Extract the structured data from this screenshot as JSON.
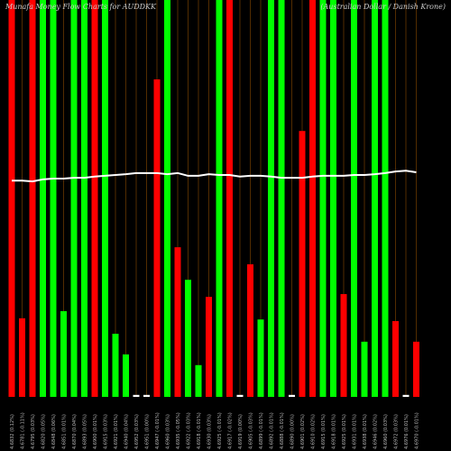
{
  "chart_data": {
    "type": "bar",
    "title": "Munafa Money Flow Charts for AUDDKK",
    "subtitle": "(Australian Dollar / Danish Krone)",
    "categories": [
      "4.6832 (0.12%)",
      "4.6781 (-0.11%)",
      "4.6795 (0.03%)",
      "4.6820 (0.05%)",
      "4.6848 (0.06%)",
      "4.6851 (0.01%)",
      "4.6870 (0.04%)",
      "4.6893 (0.05%)",
      "4.6900 (0.01%)",
      "4.6915 (0.03%)",
      "4.6921 (0.01%)",
      "4.6940 (0.04%)",
      "4.6952 (0.03%)",
      "4.6951 (0.00%)",
      "4.6947 (-0.01%)",
      "4.6960 (0.03%)",
      "4.6935 (-0.05%)",
      "4.6922 (-0.03%)",
      "4.6918 (-0.01%)",
      "4.6930 (0.03%)",
      "4.6925 (-0.01%)",
      "4.6917 (-0.02%)",
      "4.6919 (0.00%)",
      "4.6905 (-0.03%)",
      "4.6899 (-0.01%)",
      "4.6892 (-0.01%)",
      "4.6888 (-0.01%)",
      "4.6890 (0.00%)",
      "4.6901 (0.02%)",
      "4.6910 (0.02%)",
      "4.6915 (0.01%)",
      "4.6918 (0.01%)",
      "4.6925 (0.01%)",
      "4.6931 (0.01%)",
      "4.6938 (0.01%)",
      "4.6946 (0.02%)",
      "4.6960 (0.03%)",
      "4.6972 (0.03%)",
      "4.6976 (0.01%)",
      "4.6970 (-0.01%)"
    ],
    "values": [
      100,
      19.8,
      100,
      100,
      100,
      21.6,
      100,
      100,
      100,
      100,
      15.9,
      10.7,
      0.5,
      0.5,
      80,
      100,
      37.7,
      29.5,
      8,
      25.2,
      100,
      100,
      0.5,
      33.4,
      19.5,
      100,
      100,
      0.5,
      67,
      100,
      100,
      100,
      25.9,
      100,
      13.9,
      100,
      100,
      19.1,
      0.5,
      13.9
    ],
    "colors": [
      "#ff0000",
      "#ff0000",
      "#ff0000",
      "#00ff00",
      "#00ff00",
      "#00ff00",
      "#00ff00",
      "#00ff00",
      "#ff0000",
      "#00ff00",
      "#00ff00",
      "#00ff00",
      "#ffffff",
      "#ffffff",
      "#ff0000",
      "#00ff00",
      "#ff0000",
      "#00ff00",
      "#00ff00",
      "#ff0000",
      "#00ff00",
      "#ff0000",
      "#ffffff",
      "#ff0000",
      "#00ff00",
      "#00ff00",
      "#00ff00",
      "#ffffff",
      "#ff0000",
      "#ff0000",
      "#00ff00",
      "#00ff00",
      "#ff0000",
      "#00ff00",
      "#00ff00",
      "#00ff00",
      "#00ff00",
      "#ff0000",
      "#ffffff",
      "#ff0000"
    ],
    "line": {
      "color": "#ffffff",
      "values": [
        54.5,
        54.5,
        54.3,
        54.8,
        55.0,
        55.0,
        55.2,
        55.2,
        55.5,
        55.7,
        55.9,
        56.1,
        56.4,
        56.4,
        56.4,
        56.1,
        56.4,
        55.7,
        55.7,
        56.1,
        55.9,
        55.9,
        55.5,
        55.7,
        55.7,
        55.5,
        55.2,
        55.2,
        55.2,
        55.5,
        55.7,
        55.7,
        55.7,
        55.9,
        55.9,
        56.1,
        56.4,
        56.8,
        57.0,
        56.6
      ]
    },
    "ylim": [
      0,
      100
    ]
  }
}
